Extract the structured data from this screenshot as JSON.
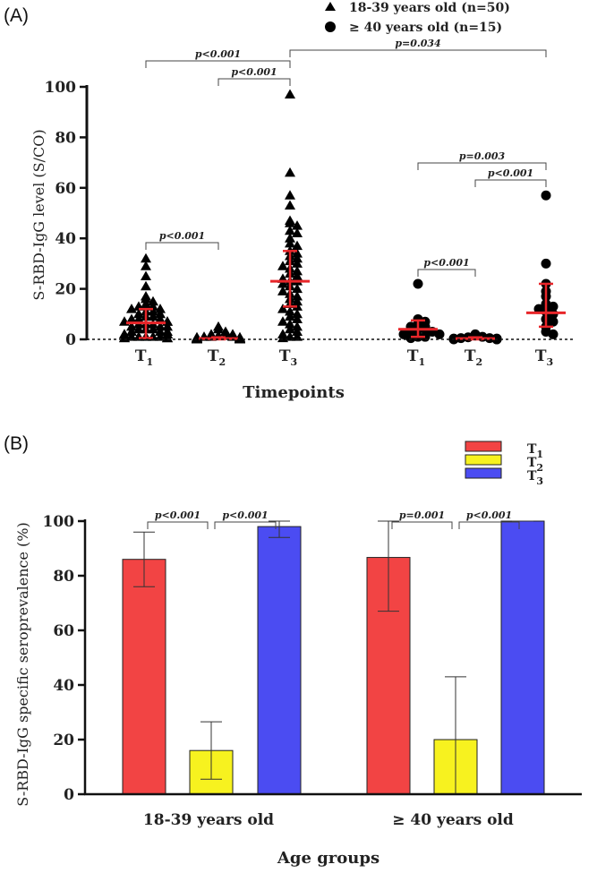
{
  "chart_data": [
    {
      "panel_label": "(A)",
      "type": "scatter",
      "ylabel": "S-RBD-IgG level (S/CO)",
      "xlabel": "Timepoints",
      "ylim": [
        0,
        100
      ],
      "yticks": [
        "0",
        "20",
        "40",
        "60",
        "80",
        "100"
      ],
      "reference_line": 0,
      "legend_position": "top-right",
      "series": [
        {
          "name": "18-39 years old (n=50)",
          "marker": "triangle",
          "groups": [
            {
              "label_base": "T",
              "label_sub": "1",
              "median": 6.5,
              "q1": 0.5,
              "q3": 12,
              "points": [
                32,
                29,
                25,
                21,
                17,
                16,
                15,
                14,
                13,
                13,
                12,
                12,
                11,
                11,
                10,
                10,
                9,
                9,
                8,
                8,
                8,
                7,
                7,
                7,
                6,
                6,
                6,
                5,
                5,
                5,
                4,
                4,
                4,
                3,
                3,
                3,
                2,
                2,
                2,
                2,
                1,
                1,
                1,
                1,
                1,
                0.5,
                0.5,
                0.5,
                0.5,
                0.5
              ]
            },
            {
              "label_base": "T",
              "label_sub": "2",
              "median": 0.3,
              "q1": 0,
              "q3": 0.8,
              "points": [
                5,
                4,
                3,
                2,
                2,
                1.5,
                1.5,
                1,
                1,
                1,
                0.8,
                0.8,
                0.5,
                0.5,
                0.5,
                0.5,
                0.3,
                0.3,
                0.3,
                0.3,
                0.2,
                0.2,
                0.2,
                0.2,
                0.1,
                0.1,
                0.1,
                0.1,
                0.1,
                0.1,
                0,
                0,
                0,
                0,
                0,
                0,
                0,
                0,
                0,
                0,
                0,
                0,
                0,
                0,
                0,
                0,
                0,
                0,
                0,
                0
              ]
            },
            {
              "label_base": "T",
              "label_sub": "3",
              "median": 23,
              "q1": 13,
              "q3": 35,
              "points": [
                97,
                66,
                57,
                53,
                47,
                46,
                45,
                43,
                42,
                40,
                38,
                37,
                35,
                34,
                33,
                32,
                31,
                30,
                29,
                28,
                27,
                26,
                25,
                24,
                23,
                23,
                22,
                21,
                20,
                19,
                18,
                17,
                16,
                15,
                14,
                13,
                12,
                11,
                10,
                9,
                8,
                7,
                6,
                5,
                4,
                3,
                2,
                1,
                1,
                0.5
              ]
            }
          ]
        },
        {
          "name": "≥ 40 years old (n=15)",
          "marker": "circle",
          "groups": [
            {
              "label_base": "T",
              "label_sub": "1",
              "median": 4,
              "q1": 1,
              "q3": 7.5,
              "points": [
                22,
                8,
                7,
                6,
                5,
                5,
                4,
                4,
                3,
                3,
                2,
                2,
                1,
                1,
                0.5
              ]
            },
            {
              "label_base": "T",
              "label_sub": "2",
              "median": 0.3,
              "q1": 0,
              "q3": 0.8,
              "points": [
                2,
                1.5,
                1,
                0.8,
                0.5,
                0.5,
                0.3,
                0.3,
                0.2,
                0.2,
                0.1,
                0.1,
                0,
                0,
                0
              ]
            },
            {
              "label_base": "T",
              "label_sub": "3",
              "median": 10.5,
              "q1": 5,
              "q3": 22,
              "points": [
                57,
                30,
                22,
                19,
                17,
                14,
                13,
                12,
                11,
                10,
                8,
                7,
                5,
                3,
                2
              ]
            }
          ]
        }
      ],
      "brackets": [
        {
          "from": "18-39 years old T1",
          "to": "18-39 years old T3",
          "label": "p<0.001"
        },
        {
          "from": "18-39 years old T2",
          "to": "18-39 years old T3",
          "label": "p<0.001"
        },
        {
          "from": "18-39 years old T3",
          "to": "≥ 40 years old T3",
          "label": "p=0.034"
        },
        {
          "from": "18-39 years old T1",
          "to": "18-39 years old T2",
          "label": "p<0.001"
        },
        {
          "from": "≥ 40 years old T1",
          "to": "≥ 40 years old T3",
          "label": "p=0.003"
        },
        {
          "from": "≥ 40 years old T2",
          "to": "≥ 40 years old T3",
          "label": "p<0.001"
        },
        {
          "from": "≥ 40 years old T1",
          "to": "≥ 40 years old T2",
          "label": "p<0.001"
        }
      ],
      "colors": {
        "median_bar": "#e8262a",
        "marker": "#000000"
      }
    },
    {
      "panel_label": "(B)",
      "type": "bar",
      "ylabel": "S-RBD-IgG specific seroprevalence (%)",
      "xlabel": "Age groups",
      "ylim": [
        0,
        100
      ],
      "yticks": [
        "0",
        "20",
        "40",
        "60",
        "80",
        "100"
      ],
      "categories": [
        "18-39 years old",
        "≥ 40 years old"
      ],
      "legend_position": "top-right",
      "series": [
        {
          "name_base": "T",
          "name_sub": "1",
          "color": "#f24444",
          "values": [
            86,
            86.7
          ],
          "err_low": [
            76,
            67
          ],
          "err_high": [
            96,
            100
          ]
        },
        {
          "name_base": "T",
          "name_sub": "2",
          "color": "#f7f21f",
          "values": [
            16,
            20
          ],
          "err_low": [
            5.5,
            0
          ],
          "err_high": [
            26.5,
            43
          ]
        },
        {
          "name_base": "T",
          "name_sub": "3",
          "color": "#4b4cf2",
          "values": [
            98,
            100
          ],
          "err_low": [
            94,
            100
          ],
          "err_high": [
            100,
            100
          ]
        }
      ],
      "brackets": [
        {
          "category": 0,
          "from": "T1",
          "to": "T2",
          "label": "p<0.001"
        },
        {
          "category": 0,
          "from": "T2",
          "to": "T3",
          "label": "p<0.001"
        },
        {
          "category": 1,
          "from": "T1",
          "to": "T2",
          "label": "p=0.001"
        },
        {
          "category": 1,
          "from": "T2",
          "to": "T3",
          "label": "p<0.001"
        }
      ]
    }
  ]
}
